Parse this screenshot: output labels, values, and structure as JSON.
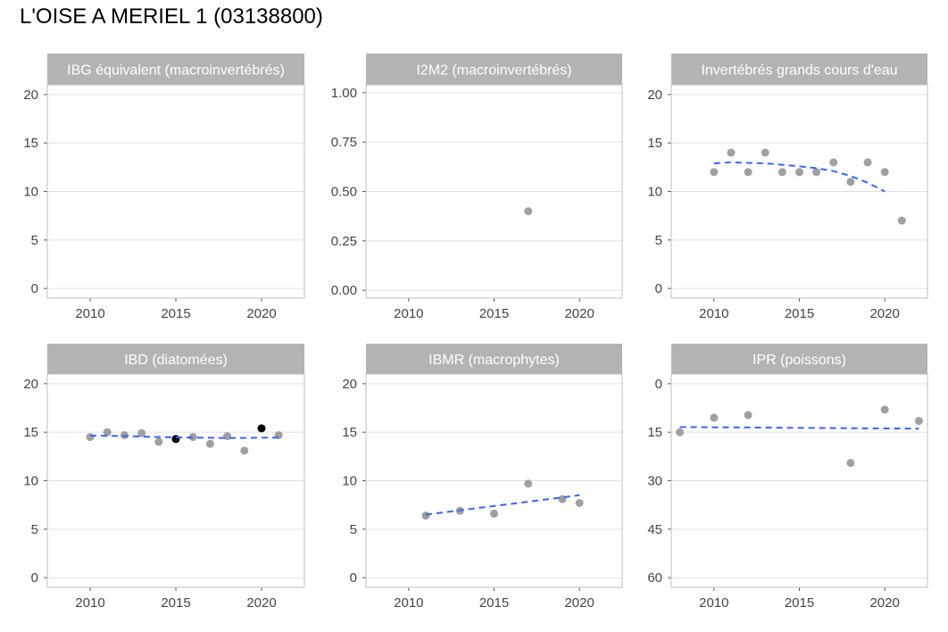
{
  "page": {
    "title": "L'OISE A MERIEL 1 (03138800)"
  },
  "colors": {
    "point_gray": "#a0a0a0",
    "point_black": "#000000",
    "trend_line": "#3366ff",
    "strip": "#b3b3b3",
    "panel_border": "#bfbfbf",
    "grid": "#e0e0e0"
  },
  "chart_data": [
    {
      "type": "scatter",
      "title": "IBG équivalent (macroinvertébrés)",
      "xlim": [
        2007.5,
        2022.5
      ],
      "ylim": [
        -1,
        21
      ],
      "y_reversed": false,
      "x_ticks": [
        2010,
        2015,
        2020
      ],
      "y_ticks": [
        0,
        5,
        10,
        15,
        20
      ],
      "y_tick_labels": [
        "0",
        "5",
        "10",
        "15",
        "20"
      ],
      "points": [],
      "trend": []
    },
    {
      "type": "scatter",
      "title": "I2M2 (macroinvertébrés)",
      "xlim": [
        2007.5,
        2022.5
      ],
      "ylim": [
        -0.04,
        1.04
      ],
      "y_reversed": false,
      "x_ticks": [
        2010,
        2015,
        2020
      ],
      "y_ticks": [
        0,
        0.25,
        0.5,
        0.75,
        1
      ],
      "y_tick_labels": [
        "0.00",
        "0.25",
        "0.50",
        "0.75",
        "1.00"
      ],
      "points": [
        {
          "x": 2017,
          "y": 0.4,
          "highlight": false
        }
      ],
      "trend": []
    },
    {
      "type": "scatter",
      "title": "Invertébrés grands cours d'eau",
      "xlim": [
        2007.5,
        2022.5
      ],
      "ylim": [
        -1,
        21
      ],
      "y_reversed": false,
      "x_ticks": [
        2010,
        2015,
        2020
      ],
      "y_ticks": [
        0,
        5,
        10,
        15,
        20
      ],
      "y_tick_labels": [
        "0",
        "5",
        "10",
        "15",
        "20"
      ],
      "points": [
        {
          "x": 2010,
          "y": 12,
          "highlight": false
        },
        {
          "x": 2011,
          "y": 14,
          "highlight": false
        },
        {
          "x": 2012,
          "y": 12,
          "highlight": false
        },
        {
          "x": 2013,
          "y": 14,
          "highlight": false
        },
        {
          "x": 2014,
          "y": 12,
          "highlight": false
        },
        {
          "x": 2015,
          "y": 12,
          "highlight": false
        },
        {
          "x": 2016,
          "y": 12,
          "highlight": false
        },
        {
          "x": 2017,
          "y": 13,
          "highlight": false
        },
        {
          "x": 2018,
          "y": 11,
          "highlight": false
        },
        {
          "x": 2019,
          "y": 13,
          "highlight": false
        },
        {
          "x": 2020,
          "y": 12,
          "highlight": false
        },
        {
          "x": 2021,
          "y": 7,
          "highlight": false
        }
      ],
      "trend": [
        {
          "x": 2010,
          "y": 12.9
        },
        {
          "x": 2011,
          "y": 13.0
        },
        {
          "x": 2012,
          "y": 12.95
        },
        {
          "x": 2013,
          "y": 12.9
        },
        {
          "x": 2014,
          "y": 12.75
        },
        {
          "x": 2015,
          "y": 12.6
        },
        {
          "x": 2016,
          "y": 12.4
        },
        {
          "x": 2017,
          "y": 12.1
        },
        {
          "x": 2018,
          "y": 11.6
        },
        {
          "x": 2019,
          "y": 10.9
        },
        {
          "x": 2020,
          "y": 10.0
        }
      ]
    },
    {
      "type": "scatter",
      "title": "IBD (diatomées)",
      "xlim": [
        2007.5,
        2022.5
      ],
      "ylim": [
        -1,
        21
      ],
      "y_reversed": false,
      "x_ticks": [
        2010,
        2015,
        2020
      ],
      "y_ticks": [
        0,
        5,
        10,
        15,
        20
      ],
      "y_tick_labels": [
        "0",
        "5",
        "10",
        "15",
        "20"
      ],
      "points": [
        {
          "x": 2010,
          "y": 14.5,
          "highlight": false
        },
        {
          "x": 2011,
          "y": 15.0,
          "highlight": false
        },
        {
          "x": 2012,
          "y": 14.7,
          "highlight": false
        },
        {
          "x": 2013,
          "y": 14.9,
          "highlight": false
        },
        {
          "x": 2014,
          "y": 14.0,
          "highlight": false
        },
        {
          "x": 2015,
          "y": 14.3,
          "highlight": true
        },
        {
          "x": 2016,
          "y": 14.5,
          "highlight": false
        },
        {
          "x": 2017,
          "y": 13.8,
          "highlight": false
        },
        {
          "x": 2018,
          "y": 14.6,
          "highlight": false
        },
        {
          "x": 2019,
          "y": 13.1,
          "highlight": false
        },
        {
          "x": 2020,
          "y": 15.4,
          "highlight": true
        },
        {
          "x": 2021,
          "y": 14.7,
          "highlight": false
        }
      ],
      "trend": [
        {
          "x": 2010,
          "y": 14.65
        },
        {
          "x": 2012,
          "y": 14.6
        },
        {
          "x": 2014,
          "y": 14.5
        },
        {
          "x": 2016,
          "y": 14.45
        },
        {
          "x": 2018,
          "y": 14.4
        },
        {
          "x": 2021,
          "y": 14.45
        }
      ]
    },
    {
      "type": "scatter",
      "title": "IBMR (macrophytes)",
      "xlim": [
        2007.5,
        2022.5
      ],
      "ylim": [
        -1,
        21
      ],
      "y_reversed": false,
      "x_ticks": [
        2010,
        2015,
        2020
      ],
      "y_ticks": [
        0,
        5,
        10,
        15,
        20
      ],
      "y_tick_labels": [
        "0",
        "5",
        "10",
        "15",
        "20"
      ],
      "points": [
        {
          "x": 2011,
          "y": 6.4,
          "highlight": false
        },
        {
          "x": 2013,
          "y": 6.9,
          "highlight": false
        },
        {
          "x": 2015,
          "y": 6.6,
          "highlight": false
        },
        {
          "x": 2017,
          "y": 9.7,
          "highlight": false
        },
        {
          "x": 2019,
          "y": 8.1,
          "highlight": false
        },
        {
          "x": 2020,
          "y": 7.7,
          "highlight": false
        }
      ],
      "trend": [
        {
          "x": 2011,
          "y": 6.5
        },
        {
          "x": 2020,
          "y": 8.5
        }
      ]
    },
    {
      "type": "scatter",
      "title": "IPR (poissons)",
      "xlim": [
        2007.5,
        2022.5
      ],
      "ylim": [
        -3,
        63
      ],
      "y_reversed": true,
      "x_ticks": [
        2010,
        2015,
        2020
      ],
      "y_ticks": [
        0,
        15,
        30,
        45,
        60
      ],
      "y_tick_labels": [
        "0",
        "15",
        "30",
        "45",
        "60"
      ],
      "points": [
        {
          "x": 2008,
          "y": 15.0,
          "highlight": false
        },
        {
          "x": 2010,
          "y": 10.5,
          "highlight": false
        },
        {
          "x": 2012,
          "y": 9.7,
          "highlight": false
        },
        {
          "x": 2018,
          "y": 24.5,
          "highlight": false
        },
        {
          "x": 2020,
          "y": 8.0,
          "highlight": false
        },
        {
          "x": 2022,
          "y": 11.5,
          "highlight": false
        }
      ],
      "trend": [
        {
          "x": 2008,
          "y": 13.4
        },
        {
          "x": 2022,
          "y": 13.9
        }
      ]
    }
  ]
}
